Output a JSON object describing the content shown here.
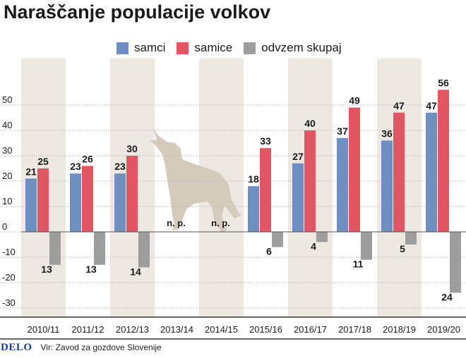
{
  "title": "Naraščanje populacije volkov",
  "colors": {
    "samci": "#6f8fc1",
    "samice": "#e25563",
    "odvzem": "#9d9d9d",
    "band": "#ede9e2",
    "wolf": "#d4cbbd"
  },
  "chart_data": {
    "type": "bar",
    "categories": [
      "2010/11",
      "2011/12",
      "2012/13",
      "2013/14",
      "2014/15",
      "2015/16",
      "2016/17",
      "2017/18",
      "2018/19",
      "2019/20"
    ],
    "series": [
      {
        "name": "samci",
        "values": [
          21,
          23,
          23,
          null,
          null,
          18,
          27,
          37,
          36,
          47
        ]
      },
      {
        "name": "samice",
        "values": [
          25,
          26,
          30,
          null,
          null,
          33,
          40,
          49,
          47,
          56
        ]
      },
      {
        "name": "odvzem skupaj",
        "values": [
          -13,
          -13,
          -14,
          null,
          null,
          -6,
          -4,
          -11,
          -5,
          -24
        ]
      }
    ],
    "missing_label": "n. p.",
    "yticks": [
      "50",
      "40",
      "30",
      "20",
      "10",
      "0",
      "-10",
      "-20",
      "-30"
    ],
    "ylim": [
      -33,
      63
    ],
    "xlabel": "",
    "ylabel": "",
    "legend": "top"
  },
  "footer": {
    "brand": "DELO",
    "source": "Vir: Zavod za gozdove Slovenije"
  }
}
